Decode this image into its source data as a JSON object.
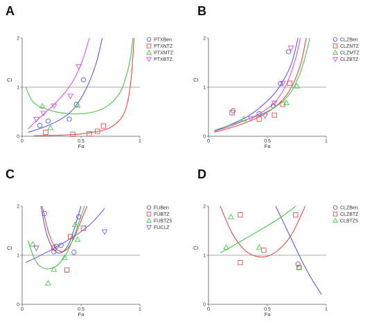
{
  "chart_data": [
    {
      "panel": "A",
      "type": "scatter",
      "xlabel": "Fa",
      "ylabel": "CI",
      "xlim": [
        0,
        1
      ],
      "ylim": [
        0,
        2
      ],
      "x_ticks": [
        "0",
        "0.5",
        "1"
      ],
      "y_ticks": [
        "0",
        "1",
        "2"
      ],
      "reference_line": 1,
      "legend_position": "top-right",
      "series": [
        {
          "name": "PTXBen",
          "color": "#5a5ad8",
          "marker": "circle",
          "points": [
            [
              0.15,
              0.22
            ],
            [
              0.22,
              0.31
            ],
            [
              0.4,
              0.35
            ],
            [
              0.46,
              0.65
            ],
            [
              0.52,
              1.15
            ]
          ],
          "fit": [
            [
              0.05,
              0.08
            ],
            [
              0.2,
              0.2
            ],
            [
              0.35,
              0.38
            ],
            [
              0.45,
              0.6
            ],
            [
              0.55,
              1.0
            ],
            [
              0.63,
              1.5
            ],
            [
              0.68,
              2.0
            ]
          ]
        },
        {
          "name": "PTXNTZ",
          "color": "#e04a4a",
          "marker": "square",
          "points": [
            [
              0.2,
              0.08
            ],
            [
              0.43,
              0.04
            ],
            [
              0.57,
              0.05
            ],
            [
              0.64,
              0.1
            ],
            [
              0.69,
              0.21
            ]
          ],
          "fit": [
            [
              0.1,
              0.01
            ],
            [
              0.4,
              0.03
            ],
            [
              0.6,
              0.08
            ],
            [
              0.75,
              0.18
            ],
            [
              0.85,
              0.4
            ],
            [
              0.9,
              0.75
            ],
            [
              0.93,
              1.3
            ],
            [
              0.95,
              2.0
            ]
          ]
        },
        {
          "name": "PTXMTZ",
          "color": "#45c845",
          "marker": "triangle-up",
          "points": [
            [
              0.17,
              0.61
            ],
            [
              0.24,
              0.17
            ],
            [
              0.47,
              0.63
            ]
          ],
          "fit": [
            [
              0.03,
              1.0
            ],
            [
              0.1,
              0.68
            ],
            [
              0.25,
              0.52
            ],
            [
              0.4,
              0.46
            ],
            [
              0.55,
              0.47
            ],
            [
              0.7,
              0.58
            ],
            [
              0.82,
              0.85
            ],
            [
              0.88,
              1.2
            ],
            [
              0.92,
              1.6
            ],
            [
              0.94,
              2.0
            ]
          ]
        },
        {
          "name": "PTXBTZ",
          "color": "#e050e0",
          "marker": "triangle-down",
          "points": [
            [
              0.12,
              0.35
            ],
            [
              0.18,
              0.47
            ],
            [
              0.27,
              0.62
            ],
            [
              0.41,
              0.82
            ],
            [
              0.48,
              1.42
            ]
          ],
          "fit": [
            [
              0.05,
              0.15
            ],
            [
              0.15,
              0.38
            ],
            [
              0.25,
              0.6
            ],
            [
              0.35,
              0.85
            ],
            [
              0.45,
              1.2
            ],
            [
              0.52,
              1.6
            ],
            [
              0.57,
              2.0
            ]
          ]
        }
      ]
    },
    {
      "panel": "B",
      "type": "scatter",
      "xlabel": "Fa",
      "ylabel": "CI",
      "xlim": [
        0,
        1
      ],
      "ylim": [
        0,
        2
      ],
      "x_ticks": [
        "0",
        "0.5",
        "1"
      ],
      "y_ticks": [
        "0",
        "1",
        "2"
      ],
      "reference_line": 1,
      "legend_position": "top-right",
      "series": [
        {
          "name": "CLZBen",
          "color": "#5a5ad8",
          "marker": "circle",
          "points": [
            [
              0.21,
              0.52
            ],
            [
              0.43,
              0.46
            ],
            [
              0.55,
              0.62
            ],
            [
              0.61,
              1.07
            ],
            [
              0.68,
              1.72
            ]
          ],
          "fit": [
            [
              0.05,
              0.1
            ],
            [
              0.2,
              0.25
            ],
            [
              0.35,
              0.43
            ],
            [
              0.5,
              0.72
            ],
            [
              0.6,
              1.0
            ],
            [
              0.7,
              1.45
            ],
            [
              0.76,
              2.0
            ]
          ]
        },
        {
          "name": "CLZNTZ",
          "color": "#e04a4a",
          "marker": "square",
          "points": [
            [
              0.2,
              0.48
            ],
            [
              0.43,
              0.35
            ],
            [
              0.56,
              0.43
            ],
            [
              0.63,
              0.65
            ],
            [
              0.69,
              1.08
            ]
          ],
          "fit": [
            [
              0.05,
              0.08
            ],
            [
              0.25,
              0.22
            ],
            [
              0.45,
              0.42
            ],
            [
              0.6,
              0.67
            ],
            [
              0.7,
              0.98
            ],
            [
              0.78,
              1.45
            ],
            [
              0.83,
              2.0
            ]
          ]
        },
        {
          "name": "CLZMTZ",
          "color": "#45c845",
          "marker": "triangle-up",
          "points": [
            [
              0.3,
              0.35
            ],
            [
              0.66,
              0.68
            ],
            [
              0.75,
              1.02
            ]
          ],
          "fit": [
            [
              0.05,
              0.12
            ],
            [
              0.25,
              0.28
            ],
            [
              0.45,
              0.45
            ],
            [
              0.6,
              0.65
            ],
            [
              0.7,
              0.9
            ],
            [
              0.78,
              1.3
            ],
            [
              0.83,
              1.7
            ],
            [
              0.86,
              2.0
            ]
          ]
        },
        {
          "name": "CLZBTZ",
          "color": "#e050e0",
          "marker": "triangle-down",
          "points": [
            [
              0.36,
              0.36
            ],
            [
              0.48,
              0.42
            ],
            [
              0.56,
              0.68
            ],
            [
              0.63,
              1.08
            ],
            [
              0.7,
              1.8
            ]
          ],
          "fit": [
            [
              0.05,
              0.1
            ],
            [
              0.2,
              0.22
            ],
            [
              0.4,
              0.42
            ],
            [
              0.55,
              0.66
            ],
            [
              0.65,
              1.0
            ],
            [
              0.73,
              1.5
            ],
            [
              0.78,
              2.0
            ]
          ]
        }
      ]
    },
    {
      "panel": "C",
      "type": "scatter",
      "xlabel": "Fa",
      "ylabel": "CI",
      "xlim": [
        0,
        1
      ],
      "ylim": [
        0,
        2
      ],
      "x_ticks": [
        "0",
        "0.5",
        "1"
      ],
      "y_ticks": [
        "0",
        "1",
        "2"
      ],
      "reference_line": 1,
      "legend_position": "top-right",
      "series": [
        {
          "name": "FUBen",
          "color": "#5a5ad8",
          "marker": "circle",
          "points": [
            [
              0.19,
              1.85
            ],
            [
              0.27,
              1.07
            ],
            [
              0.29,
              1.18
            ],
            [
              0.33,
              1.2
            ],
            [
              0.44,
              1.06
            ],
            [
              0.48,
              1.78
            ]
          ],
          "fit": [
            [
              0.16,
              2.0
            ],
            [
              0.2,
              1.5
            ],
            [
              0.25,
              1.18
            ],
            [
              0.3,
              1.05
            ],
            [
              0.35,
              1.08
            ],
            [
              0.4,
              1.25
            ],
            [
              0.45,
              1.6
            ],
            [
              0.5,
              2.0
            ]
          ]
        },
        {
          "name": "FUBTZ",
          "color": "#e04a4a",
          "marker": "square",
          "points": [
            [
              0.27,
              1.15
            ],
            [
              0.38,
              0.7
            ],
            [
              0.41,
              1.38
            ],
            [
              0.52,
              1.55
            ]
          ],
          "fit": [
            [
              0.17,
              2.0
            ],
            [
              0.22,
              1.5
            ],
            [
              0.27,
              1.2
            ],
            [
              0.32,
              1.08
            ],
            [
              0.38,
              1.12
            ],
            [
              0.44,
              1.35
            ],
            [
              0.5,
              1.7
            ],
            [
              0.55,
              2.0
            ]
          ]
        },
        {
          "name": "FUBTZ5",
          "color": "#45c845",
          "marker": "triangle-up",
          "points": [
            [
              0.09,
              1.22
            ],
            [
              0.22,
              0.43
            ],
            [
              0.27,
              0.71
            ],
            [
              0.36,
              0.95
            ],
            [
              0.45,
              1.62
            ],
            [
              0.47,
              1.32
            ]
          ],
          "fit": [
            [
              0.05,
              1.3
            ],
            [
              0.1,
              0.95
            ],
            [
              0.15,
              0.78
            ],
            [
              0.22,
              0.72
            ],
            [
              0.3,
              0.8
            ],
            [
              0.38,
              1.05
            ],
            [
              0.45,
              1.45
            ],
            [
              0.5,
              1.8
            ],
            [
              0.53,
              2.0
            ]
          ]
        },
        {
          "name": "FUCLZ",
          "color": "#6a6ae0",
          "marker": "triangle-down",
          "points": [
            [
              0.12,
              1.15
            ],
            [
              0.7,
              1.48
            ]
          ],
          "fit": [
            [
              0.03,
              0.85
            ],
            [
              0.2,
              1.05
            ],
            [
              0.35,
              1.25
            ],
            [
              0.5,
              1.48
            ],
            [
              0.6,
              1.68
            ],
            [
              0.7,
              1.95
            ]
          ]
        }
      ]
    },
    {
      "panel": "D",
      "type": "scatter",
      "xlabel": "Fa",
      "ylabel": "CI",
      "xlim": [
        0,
        1
      ],
      "ylim": [
        0,
        2
      ],
      "x_ticks": [
        "0",
        "0.5",
        "1"
      ],
      "y_ticks": [
        "0",
        "1",
        "2"
      ],
      "reference_line": 1,
      "legend_position": "top-right",
      "series": [
        {
          "name": "CLZBen",
          "color": "#5a5ad8",
          "marker": "circle",
          "points": [
            [
              0.76,
              0.82
            ]
          ],
          "fit": [
            [
              0.57,
              2.0
            ],
            [
              0.65,
              1.6
            ],
            [
              0.72,
              1.25
            ],
            [
              0.8,
              0.85
            ],
            [
              0.88,
              0.5
            ],
            [
              0.96,
              0.2
            ]
          ]
        },
        {
          "name": "CLZBTZ",
          "color": "#e04a4a",
          "marker": "square",
          "points": [
            [
              0.27,
              1.82
            ],
            [
              0.27,
              0.85
            ],
            [
              0.47,
              1.1
            ],
            [
              0.74,
              1.82
            ],
            [
              0.77,
              0.75
            ]
          ],
          "fit": [
            [
              0.1,
              2.0
            ],
            [
              0.2,
              1.45
            ],
            [
              0.3,
              1.12
            ],
            [
              0.4,
              0.98
            ],
            [
              0.5,
              0.98
            ],
            [
              0.6,
              1.12
            ],
            [
              0.7,
              1.4
            ],
            [
              0.78,
              1.78
            ],
            [
              0.82,
              2.0
            ]
          ]
        },
        {
          "name": "CLBTZ5",
          "color": "#45c845",
          "marker": "triangle-up",
          "points": [
            [
              0.15,
              1.16
            ],
            [
              0.19,
              1.78
            ],
            [
              0.43,
              1.16
            ],
            [
              0.77,
              0.75
            ]
          ],
          "fit": [
            [
              0.1,
              1.05
            ],
            [
              0.2,
              1.18
            ],
            [
              0.3,
              1.32
            ],
            [
              0.4,
              1.46
            ],
            [
              0.5,
              1.6
            ],
            [
              0.6,
              1.75
            ],
            [
              0.7,
              1.92
            ],
            [
              0.74,
              2.0
            ]
          ]
        }
      ]
    }
  ]
}
